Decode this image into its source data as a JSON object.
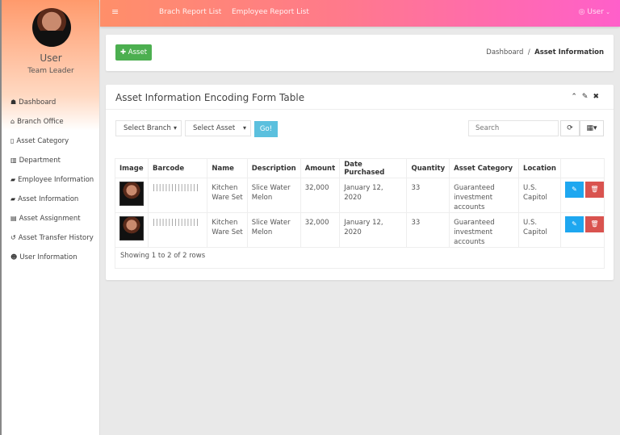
{
  "sidebar": {
    "user_name": "User",
    "user_role": "Team Leader",
    "items": [
      {
        "icon": "dashboard-icon",
        "glyph": "☗",
        "label": "Dashboard"
      },
      {
        "icon": "home-icon",
        "glyph": "⌂",
        "label": "Branch Office"
      },
      {
        "icon": "file-icon",
        "glyph": "▯",
        "label": "Asset Category"
      },
      {
        "icon": "bank-icon",
        "glyph": "▥",
        "label": "Department"
      },
      {
        "icon": "folder-open-icon",
        "glyph": "▰",
        "label": "Employee Information"
      },
      {
        "icon": "folder-open-icon",
        "glyph": "▰",
        "label": "Asset Information"
      },
      {
        "icon": "list-alt-icon",
        "glyph": "▤",
        "label": "Asset Assignment"
      },
      {
        "icon": "history-icon",
        "glyph": "↺",
        "label": "Asset Transfer History"
      },
      {
        "icon": "users-icon",
        "glyph": "☻",
        "label": "User Information"
      }
    ]
  },
  "header": {
    "menu_glyph": "≡",
    "links": [
      "Brach Report List",
      "Employee Report List"
    ],
    "user_label": "User",
    "user_glyph": "◎ ",
    "caret": " ⌄"
  },
  "topcard": {
    "add_label": "✚ Asset",
    "breadcrumb": {
      "home": "Dashboard",
      "separator": "/",
      "current": "Asset Information"
    }
  },
  "panel": {
    "title": "Asset Information Encoding Form Table",
    "tools": "⌃✎✖",
    "filters": {
      "branch": "Select Branch",
      "asset": "Select Asset",
      "go": "Go!"
    },
    "search_placeholder": "Search",
    "refresh_glyph": "⟳",
    "columns_glyph": "▦▾",
    "columns": [
      "Image",
      "Barcode",
      "Name",
      "Description",
      "Amount",
      "Date Purchased",
      "Quantity",
      "Asset Category",
      "Location"
    ],
    "rows": [
      {
        "barcode": "|||||||||||||||",
        "name": "Kitchen Ware Set",
        "description": "Slice Water Melon",
        "amount": "32,000",
        "date": "January 12, 2020",
        "quantity": "33",
        "category": "Guaranteed investment accounts",
        "location": "U.S. Capitol"
      },
      {
        "barcode": "|||||||||||||||",
        "name": "Kitchen Ware Set",
        "description": "Slice Water Melon",
        "amount": "32,000",
        "date": "January 12, 2020",
        "quantity": "33",
        "category": "Guaranteed investment accounts",
        "location": "U.S. Capitol"
      }
    ],
    "edit_glyph": "✎",
    "delete_glyph": "🗑",
    "footer": "Showing 1 to 2 of 2 rows"
  },
  "colors": {
    "add": "#4caf50",
    "go": "#5bc0de",
    "edit": "#1ea7f0",
    "delete": "#d9534f"
  }
}
